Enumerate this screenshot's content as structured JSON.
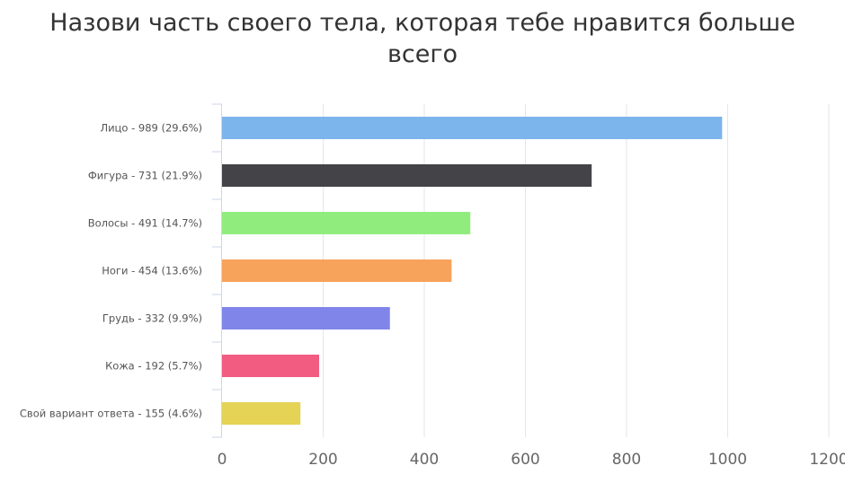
{
  "chart_data": {
    "type": "bar",
    "orientation": "horizontal",
    "title": "Назови часть своего тела, которая тебе нравится больше всего",
    "xlabel": "",
    "ylabel": "",
    "xlim": [
      0,
      1200
    ],
    "ticks": [
      0,
      200,
      400,
      600,
      800,
      1000,
      1200
    ],
    "grid": true,
    "legend": "none",
    "categories": [
      "Лицо - 989 (29.6%)",
      "Фигура - 731 (21.9%)",
      "Волосы - 491 (14.7%)",
      "Ноги - 454 (13.6%)",
      "Грудь - 332 (9.9%)",
      "Кожа - 192 (5.7%)",
      "Свой вариант ответа - 155 (4.6%)"
    ],
    "values": [
      989,
      731,
      491,
      454,
      332,
      192,
      155
    ],
    "colors": [
      "#7cb5ec",
      "#434348",
      "#90ed7d",
      "#f7a35c",
      "#8085e9",
      "#f15c80",
      "#e4d354"
    ]
  }
}
